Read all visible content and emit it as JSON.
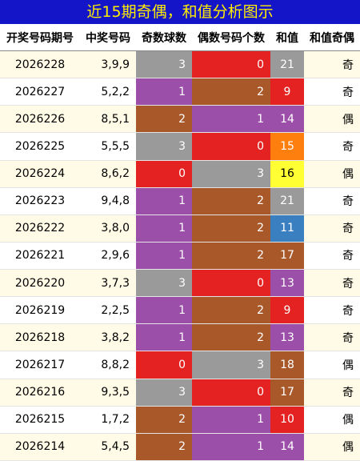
{
  "title": "近15期奇偶，和值分析图示",
  "table": {
    "header": [
      "开奖号码期号",
      "中奖号码",
      "奇数球数",
      "偶数号码个数",
      "和值",
      "和值奇偶"
    ],
    "rows": [
      [
        "2026228",
        "3,9,9",
        3,
        0,
        21,
        "奇"
      ],
      [
        "2026227",
        "5,2,2",
        1,
        2,
        9,
        "奇"
      ],
      [
        "2026226",
        "8,5,1",
        2,
        1,
        14,
        "偶"
      ],
      [
        "2026225",
        "5,5,5",
        3,
        0,
        15,
        "奇"
      ],
      [
        "2026224",
        "8,6,2",
        0,
        3,
        16,
        "偶"
      ],
      [
        "2026223",
        "9,4,8",
        1,
        2,
        21,
        "奇"
      ],
      [
        "2026222",
        "3,8,0",
        1,
        2,
        11,
        "奇"
      ],
      [
        "2026221",
        "2,9,6",
        1,
        2,
        17,
        "奇"
      ],
      [
        "2026220",
        "3,7,3",
        3,
        0,
        13,
        "奇"
      ],
      [
        "2026219",
        "2,2,5",
        1,
        2,
        9,
        "奇"
      ],
      [
        "2026218",
        "3,8,2",
        1,
        2,
        13,
        "奇"
      ],
      [
        "2026217",
        "8,8,2",
        0,
        3,
        18,
        "偶"
      ],
      [
        "2026216",
        "9,3,5",
        3,
        0,
        17,
        "奇"
      ],
      [
        "2026215",
        "1,7,2",
        2,
        1,
        10,
        "偶"
      ],
      [
        "2026214",
        "5,4,5",
        2,
        1,
        14,
        "偶"
      ]
    ],
    "count_colors": [
      "#e52222",
      "#9b4fa8",
      "#a9582a",
      "#9a9a9a"
    ],
    "sum_colors": [
      "#9a9a9a",
      "#e52222",
      "#9b4fa8",
      "#ff7f0e",
      "#ffff33",
      "#9a9a9a",
      "#3a7fc0",
      "#a9582a",
      "#9b4fa8",
      "#e52222",
      "#9b4fa8",
      "#a9582a",
      "#a9582a",
      "#e52222",
      "#9b4fa8"
    ]
  }
}
